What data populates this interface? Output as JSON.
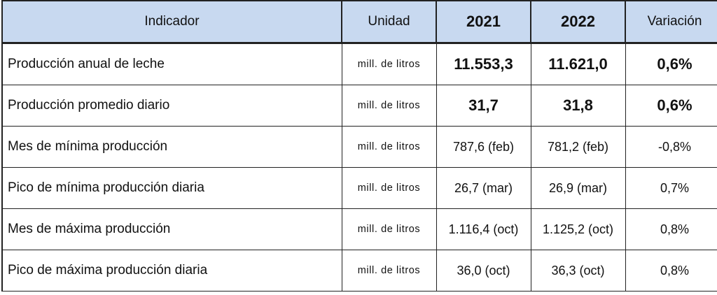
{
  "table": {
    "headers": {
      "indicator": "Indicador",
      "unit": "Unidad",
      "y2021": "2021",
      "y2022": "2022",
      "variation": "Variación"
    },
    "rows": [
      {
        "indicator": "Producción anual de leche",
        "unit": "mill. de litros",
        "v2021": "11.553,3",
        "v2022": "11.621,0",
        "variation": "0,6%"
      },
      {
        "indicator": "Producción promedio diario",
        "unit": "mill. de litros",
        "v2021": "31,7",
        "v2022": "31,8",
        "variation": "0,6%"
      },
      {
        "indicator": "Mes de mínima producción",
        "unit": "mill. de litros",
        "v2021": "787,6 (feb)",
        "v2022": "781,2 (feb)",
        "variation": "-0,8%"
      },
      {
        "indicator": "Pico de mínima producción diaria",
        "unit": "mill. de litros",
        "v2021": "26,7 (mar)",
        "v2022": "26,9 (mar)",
        "variation": "0,7%"
      },
      {
        "indicator": "Mes de máxima producción",
        "unit": "mill. de litros",
        "v2021": "1.116,4 (oct)",
        "v2022": "1.125,2 (oct)",
        "variation": "0,8%"
      },
      {
        "indicator": "Pico de máxima producción diaria",
        "unit": "mill. de litros",
        "v2021": "36,0 (oct)",
        "v2022": "36,3 (oct)",
        "variation": "0,8%"
      }
    ],
    "colors": {
      "header_bg": "#c8d9f0",
      "border": "#222222"
    }
  }
}
